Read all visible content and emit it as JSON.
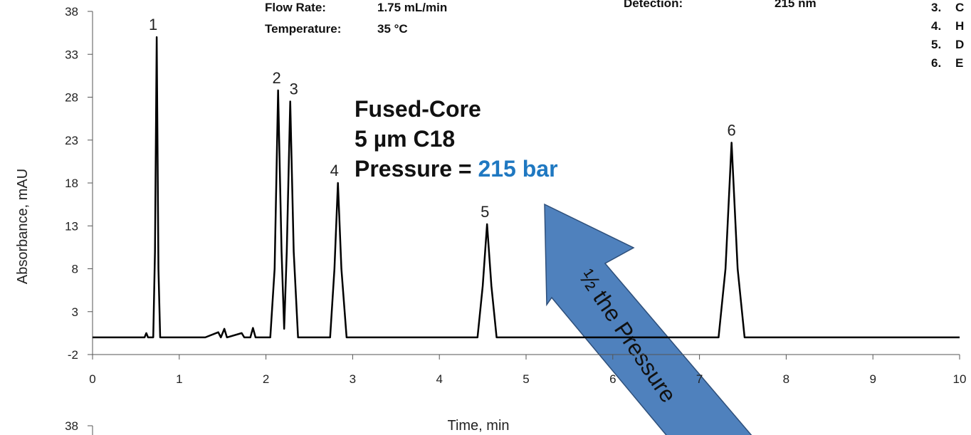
{
  "chart_data": [
    {
      "type": "line",
      "x": [
        0,
        0.6,
        0.62,
        0.64,
        0.7,
        0.72,
        0.74,
        0.76,
        0.78,
        1.3,
        1.45,
        1.48,
        1.52,
        1.55,
        1.72,
        1.75,
        1.82,
        1.85,
        1.88,
        2.05,
        2.1,
        2.14,
        2.18,
        2.21,
        2.24,
        2.28,
        2.32,
        2.37,
        2.74,
        2.79,
        2.83,
        2.87,
        2.93,
        4.44,
        4.5,
        4.55,
        4.6,
        4.66,
        7.22,
        7.3,
        7.37,
        7.44,
        7.52,
        10
      ],
      "values": [
        0,
        0,
        0.5,
        0,
        0,
        10,
        35,
        8,
        0,
        0,
        0.6,
        0,
        1,
        0,
        0.5,
        0,
        0,
        1.1,
        0,
        0,
        8,
        28.8,
        10,
        1,
        10,
        27.5,
        10,
        0,
        0,
        8,
        18,
        8,
        0,
        0,
        6,
        13.2,
        6,
        0,
        0,
        8,
        22.7,
        8,
        0,
        0
      ],
      "color": "#000000",
      "xlim": [
        0,
        10
      ],
      "xticks": [
        0,
        1,
        2,
        3,
        4,
        5,
        6,
        7,
        8,
        9,
        10
      ],
      "ylim": [
        -2,
        38
      ],
      "yticks": [
        -2,
        3,
        8,
        13,
        18,
        23,
        28,
        33,
        38
      ],
      "xlabel": "Time, min",
      "ylabel": "Absorbance, mAU",
      "peak_labels": [
        "1",
        "2",
        "3",
        "4",
        "5",
        "6"
      ],
      "conditions": {
        "flow_rate_label": "Flow Rate:",
        "flow_rate": "1.75 mL/min",
        "temperature_label": "Temperature:",
        "temperature": "35 °C",
        "detection_label": "Detection:",
        "detection": "215 nm"
      },
      "compounds": [
        {
          "num": "3.",
          "name": "C"
        },
        {
          "num": "4.",
          "name": "H"
        },
        {
          "num": "5.",
          "name": "D"
        },
        {
          "num": "6.",
          "name": "E"
        }
      ],
      "column": [
        "Fused-Core",
        "5 µm C18"
      ],
      "pressure_label": "Pressure = ",
      "pressure": "215 bar",
      "arrow_text": "½ the Pressure"
    },
    {
      "type": "line",
      "yticks": [
        38
      ]
    }
  ]
}
